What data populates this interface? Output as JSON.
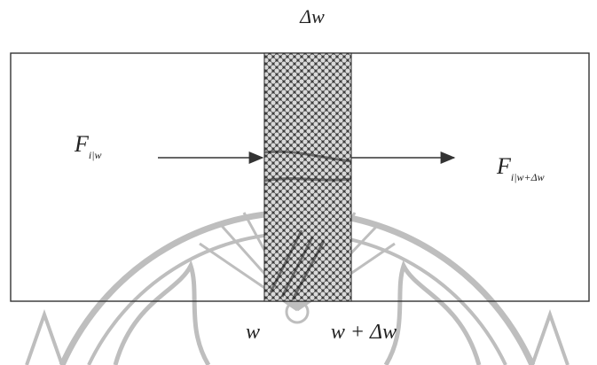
{
  "diagram": {
    "delta_label": "Δw",
    "flux_in": {
      "symbol": "F",
      "subscript": "i|w"
    },
    "flux_out": {
      "symbol": "F",
      "subscript": "i|w+Δw"
    },
    "boundary_left_label": "w",
    "boundary_right_label": "w + Δw"
  },
  "colors": {
    "line": "#333333",
    "slice_fill": "#555555",
    "watermark": "#b3b3b3"
  }
}
